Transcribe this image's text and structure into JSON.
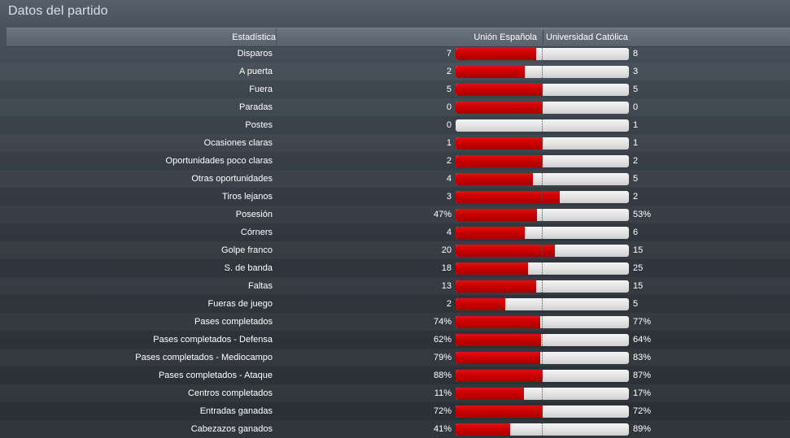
{
  "title": "Datos del partido",
  "header": {
    "label": "Estadística",
    "home_team": "Unión Española",
    "away_team": "Universidad Católica"
  },
  "stats": [
    {
      "label": "Disparos",
      "home": "7",
      "away": "8",
      "home_share": 0.467
    },
    {
      "label": "A puerta",
      "home": "2",
      "away": "3",
      "home_share": 0.4
    },
    {
      "label": "Fuera",
      "home": "5",
      "away": "5",
      "home_share": 0.5
    },
    {
      "label": "Paradas",
      "home": "0",
      "away": "0",
      "home_share": 0.5
    },
    {
      "label": "Postes",
      "home": "0",
      "away": "1",
      "home_share": 0.0
    },
    {
      "label": "Ocasiones claras",
      "home": "1",
      "away": "1",
      "home_share": 0.5
    },
    {
      "label": "Oportunidades poco claras",
      "home": "2",
      "away": "2",
      "home_share": 0.5
    },
    {
      "label": "Otras oportunidades",
      "home": "4",
      "away": "5",
      "home_share": 0.444
    },
    {
      "label": "Tiros lejanos",
      "home": "3",
      "away": "2",
      "home_share": 0.6
    },
    {
      "label": "Posesión",
      "home": "47%",
      "away": "53%",
      "home_share": 0.47
    },
    {
      "label": "Córners",
      "home": "4",
      "away": "6",
      "home_share": 0.4
    },
    {
      "label": "Golpe franco",
      "home": "20",
      "away": "15",
      "home_share": 0.571
    },
    {
      "label": "S. de banda",
      "home": "18",
      "away": "25",
      "home_share": 0.419
    },
    {
      "label": "Faltas",
      "home": "13",
      "away": "15",
      "home_share": 0.464
    },
    {
      "label": "Fueras de juego",
      "home": "2",
      "away": "5",
      "home_share": 0.286
    },
    {
      "label": "Pases completados",
      "home": "74%",
      "away": "77%",
      "home_share": 0.49
    },
    {
      "label": "Pases completados - Defensa",
      "home": "62%",
      "away": "64%",
      "home_share": 0.492
    },
    {
      "label": "Pases completados - Mediocampo",
      "home": "79%",
      "away": "83%",
      "home_share": 0.488
    },
    {
      "label": "Pases completados - Ataque",
      "home": "88%",
      "away": "87%",
      "home_share": 0.503
    },
    {
      "label": "Centros completados",
      "home": "11%",
      "away": "17%",
      "home_share": 0.393
    },
    {
      "label": "Entradas ganadas",
      "home": "72%",
      "away": "72%",
      "home_share": 0.5
    },
    {
      "label": "Cabezazos ganados",
      "home": "41%",
      "away": "89%",
      "home_share": 0.315
    }
  ],
  "colors": {
    "home_bar": "#c80000",
    "away_bar": "#e2e2e2"
  }
}
